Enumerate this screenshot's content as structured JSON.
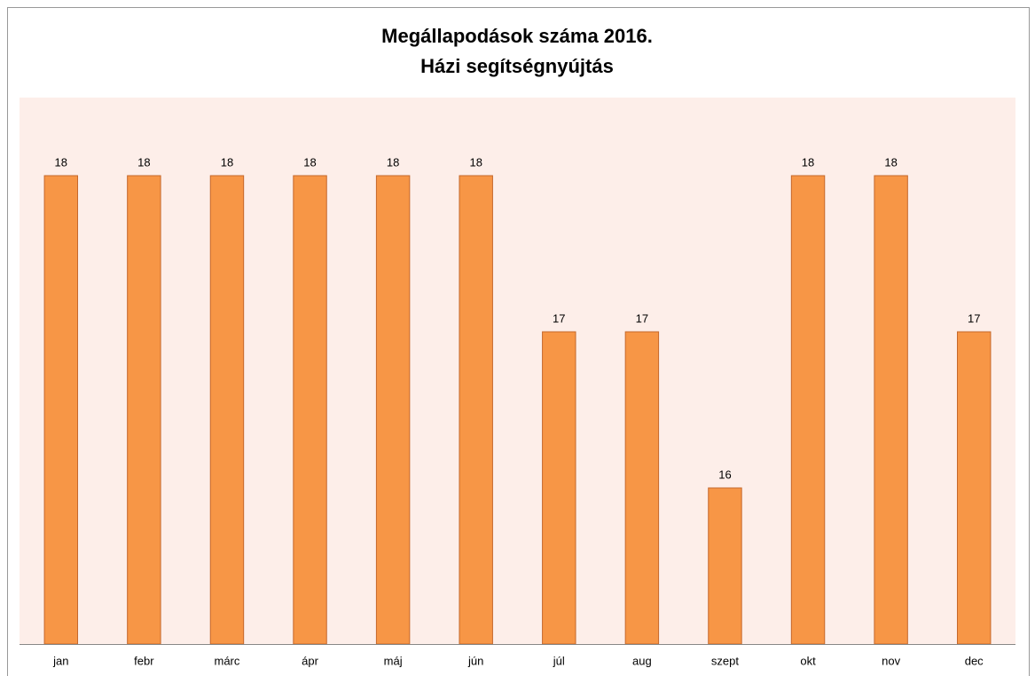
{
  "chart_data": {
    "type": "bar",
    "title": "Megállapodások száma 2016.",
    "subtitle": "Házi segítségnyújtás",
    "categories": [
      "jan",
      "febr",
      "márc",
      "ápr",
      "máj",
      "jún",
      "júl",
      "aug",
      "szept",
      "okt",
      "nov",
      "dec"
    ],
    "values": [
      18,
      18,
      18,
      18,
      18,
      18,
      17,
      17,
      16,
      18,
      18,
      17
    ],
    "color": "#f79646",
    "ylim": [
      15,
      18.5
    ]
  }
}
